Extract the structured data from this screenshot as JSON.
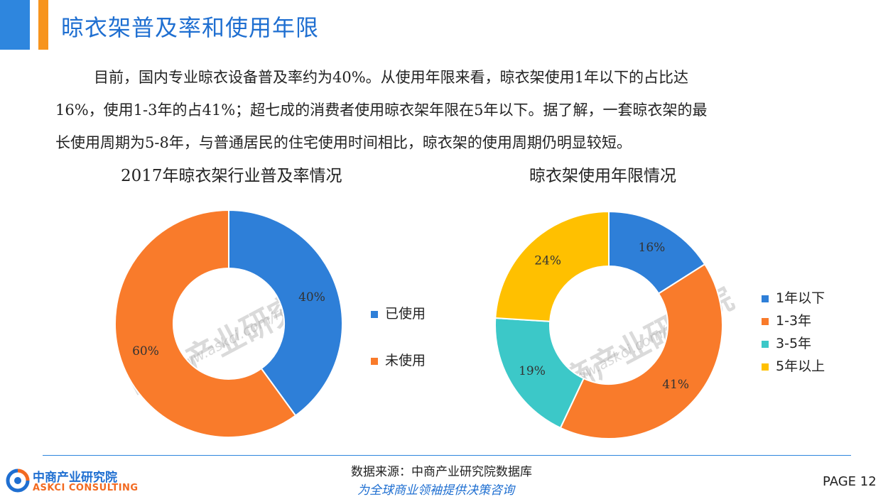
{
  "header": {
    "title": "晾衣架普及率和使用年限",
    "accent_colors": [
      "#2e86de",
      "#f7941d"
    ]
  },
  "intro": {
    "line1": "目前，国内专业晾衣设备普及率约为40%。从使用年限来看，晾衣架使用1年以下的占比达",
    "line2": "16%，使用1-3年的占41%；超七成的消费者使用晾衣架年限在5年以下。据了解，一套晾衣架的最",
    "line3": "长使用周期为5-8年，与普通居民的住宅使用时间相比，晾衣架的使用周期仍明显较短。"
  },
  "watermark": {
    "name": "中商产业研究院",
    "url": "www.askci.com/reports/"
  },
  "chart_data": [
    {
      "type": "pie",
      "donut": true,
      "title": "2017年晾衣架行业普及率情况",
      "categories": [
        "已使用",
        "未使用"
      ],
      "values": [
        40,
        60
      ],
      "labels": [
        "40%",
        "60%"
      ],
      "colors": [
        "#2e7fd8",
        "#f97b2b"
      ],
      "legend": "right"
    },
    {
      "type": "pie",
      "donut": true,
      "title": "晾衣架使用年限情况",
      "categories": [
        "1年以下",
        "1-3年",
        "3-5年",
        "5年以上"
      ],
      "values": [
        16,
        41,
        19,
        24
      ],
      "labels": [
        "16%",
        "41%",
        "19%",
        "24%"
      ],
      "colors": [
        "#2e7fd8",
        "#f97b2b",
        "#3cc8c8",
        "#ffc000"
      ],
      "legend": "right"
    }
  ],
  "footer": {
    "source": "数据来源：中商产业研究院数据库",
    "slogan": "为全球商业领袖提供决策咨询",
    "page": "PAGE  12",
    "logo_cn": "中商产业研究院",
    "logo_en": "ASKCI CONSULTING"
  }
}
